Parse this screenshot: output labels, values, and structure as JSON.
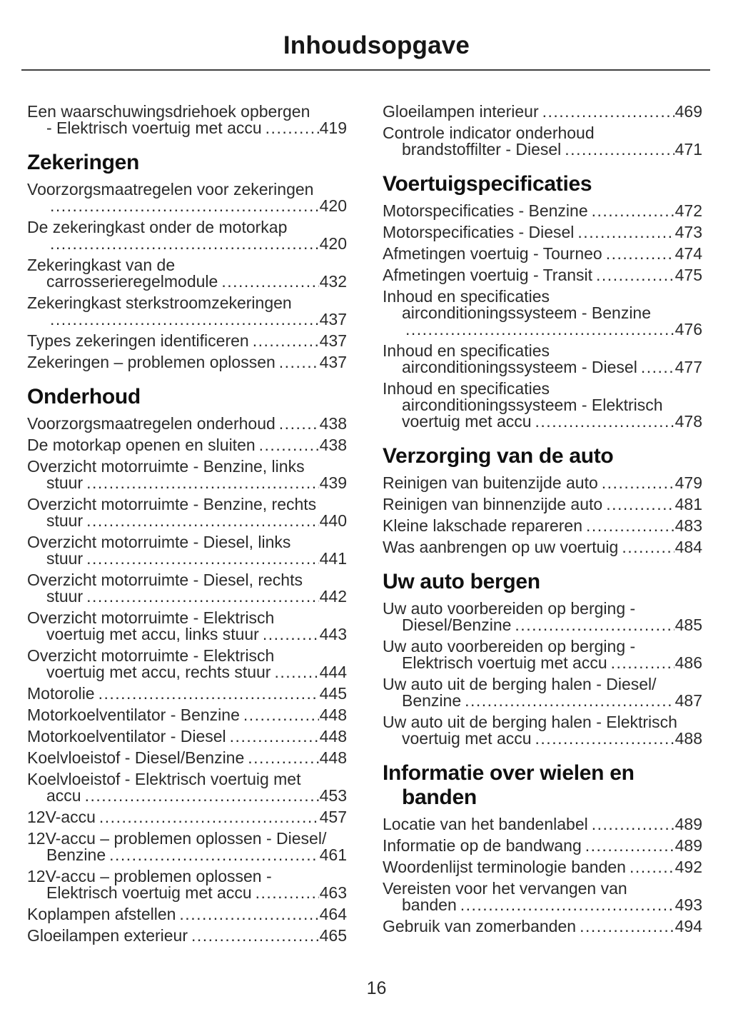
{
  "header": {
    "title": "Inhoudsopgave"
  },
  "footer": {
    "page_number": "16"
  },
  "toc": {
    "columns": [
      {
        "blocks": [
          {
            "heading_lines": null,
            "entries": [
              {
                "lines": [
                  "Een waarschuwingsdriehoek opbergen",
                  "- Elektrisch voertuig met accu"
                ],
                "page": "419"
              }
            ]
          },
          {
            "heading_lines": [
              "Zekeringen"
            ],
            "entries": [
              {
                "lines": [
                  "Voorzorgsmaatregelen voor zekeringen",
                  ""
                ],
                "page": "420"
              },
              {
                "lines": [
                  "De zekeringkast onder de motorkap",
                  ""
                ],
                "page": "420"
              },
              {
                "lines": [
                  "Zekeringkast van de",
                  "carrosserieregelmodule"
                ],
                "page": "432"
              },
              {
                "lines": [
                  "Zekeringkast sterkstroomzekeringen",
                  ""
                ],
                "page": "437"
              },
              {
                "lines": [
                  "Types zekeringen identificeren"
                ],
                "page": "437"
              },
              {
                "lines": [
                  "Zekeringen – problemen oplossen"
                ],
                "page": "437"
              }
            ]
          },
          {
            "heading_lines": [
              "Onderhoud"
            ],
            "entries": [
              {
                "lines": [
                  "Voorzorgsmaatregelen onderhoud"
                ],
                "page": "438"
              },
              {
                "lines": [
                  "De motorkap openen en sluiten"
                ],
                "page": "438"
              },
              {
                "lines": [
                  "Overzicht motorruimte - Benzine, links",
                  "stuur"
                ],
                "page": "439"
              },
              {
                "lines": [
                  "Overzicht motorruimte - Benzine, rechts",
                  "stuur"
                ],
                "page": "440"
              },
              {
                "lines": [
                  "Overzicht motorruimte - Diesel, links",
                  "stuur"
                ],
                "page": "441"
              },
              {
                "lines": [
                  "Overzicht motorruimte - Diesel, rechts",
                  "stuur"
                ],
                "page": "442"
              },
              {
                "lines": [
                  "Overzicht motorruimte - Elektrisch",
                  "voertuig met accu, links stuur"
                ],
                "page": "443"
              },
              {
                "lines": [
                  "Overzicht motorruimte - Elektrisch",
                  "voertuig met accu, rechts stuur"
                ],
                "page": "444"
              },
              {
                "lines": [
                  "Motorolie"
                ],
                "page": "445"
              },
              {
                "lines": [
                  "Motorkoelventilator - Benzine"
                ],
                "page": "448"
              },
              {
                "lines": [
                  "Motorkoelventilator - Diesel"
                ],
                "page": "448"
              },
              {
                "lines": [
                  "Koelvloeistof - Diesel/Benzine"
                ],
                "page": "448"
              },
              {
                "lines": [
                  "Koelvloeistof - Elektrisch voertuig met",
                  "accu"
                ],
                "page": "453"
              },
              {
                "lines": [
                  "12V-accu"
                ],
                "page": "457"
              },
              {
                "lines": [
                  "12V-accu – problemen oplossen - Diesel/",
                  "Benzine"
                ],
                "page": "461"
              },
              {
                "lines": [
                  "12V-accu – problemen oplossen -",
                  "Elektrisch voertuig met accu"
                ],
                "page": "463"
              },
              {
                "lines": [
                  "Koplampen afstellen"
                ],
                "page": "464"
              },
              {
                "lines": [
                  "Gloeilampen exterieur"
                ],
                "page": "465"
              }
            ]
          }
        ]
      },
      {
        "blocks": [
          {
            "heading_lines": null,
            "entries": [
              {
                "lines": [
                  "Gloeilampen interieur"
                ],
                "page": "469"
              },
              {
                "lines": [
                  "Controle indicator onderhoud",
                  "brandstoffilter - Diesel"
                ],
                "page": "471"
              }
            ]
          },
          {
            "heading_lines": [
              "Voertuigspecificaties"
            ],
            "entries": [
              {
                "lines": [
                  "Motorspecificaties - Benzine"
                ],
                "page": "472"
              },
              {
                "lines": [
                  "Motorspecificaties - Diesel"
                ],
                "page": "473"
              },
              {
                "lines": [
                  "Afmetingen voertuig - Tourneo"
                ],
                "page": "474"
              },
              {
                "lines": [
                  "Afmetingen voertuig - Transit"
                ],
                "page": "475"
              },
              {
                "lines": [
                  "Inhoud en specificaties",
                  "airconditioningssysteem - Benzine",
                  ""
                ],
                "page": "476"
              },
              {
                "lines": [
                  "Inhoud en specificaties",
                  "airconditioningssysteem - Diesel"
                ],
                "page": "477"
              },
              {
                "lines": [
                  "Inhoud en specificaties",
                  "airconditioningssysteem - Elektrisch",
                  "voertuig met accu"
                ],
                "page": "478"
              }
            ]
          },
          {
            "heading_lines": [
              "Verzorging van de auto"
            ],
            "entries": [
              {
                "lines": [
                  "Reinigen van buitenzijde auto"
                ],
                "page": "479"
              },
              {
                "lines": [
                  "Reinigen van binnenzijde auto"
                ],
                "page": "481"
              },
              {
                "lines": [
                  "Kleine lakschade repareren"
                ],
                "page": "483"
              },
              {
                "lines": [
                  "Was aanbrengen op uw voertuig"
                ],
                "page": "484"
              }
            ]
          },
          {
            "heading_lines": [
              "Uw auto bergen"
            ],
            "entries": [
              {
                "lines": [
                  "Uw auto voorbereiden op berging -",
                  "Diesel/Benzine"
                ],
                "page": "485"
              },
              {
                "lines": [
                  "Uw auto voorbereiden op berging -",
                  "Elektrisch voertuig met accu"
                ],
                "page": "486"
              },
              {
                "lines": [
                  "Uw auto uit de berging halen - Diesel/",
                  "Benzine"
                ],
                "page": "487"
              },
              {
                "lines": [
                  "Uw auto uit de berging halen - Elektrisch",
                  "voertuig met accu"
                ],
                "page": "488"
              }
            ]
          },
          {
            "heading_lines": [
              "Informatie over wielen en",
              "banden"
            ],
            "entries": [
              {
                "lines": [
                  "Locatie van het bandenlabel"
                ],
                "page": "489"
              },
              {
                "lines": [
                  "Informatie op de bandwang"
                ],
                "page": "489"
              },
              {
                "lines": [
                  "Woordenlijst terminologie banden"
                ],
                "page": "492"
              },
              {
                "lines": [
                  "Vereisten voor het vervangen van",
                  "banden"
                ],
                "page": "493"
              },
              {
                "lines": [
                  "Gebruik van zomerbanden"
                ],
                "page": "494"
              }
            ]
          }
        ]
      }
    ]
  }
}
